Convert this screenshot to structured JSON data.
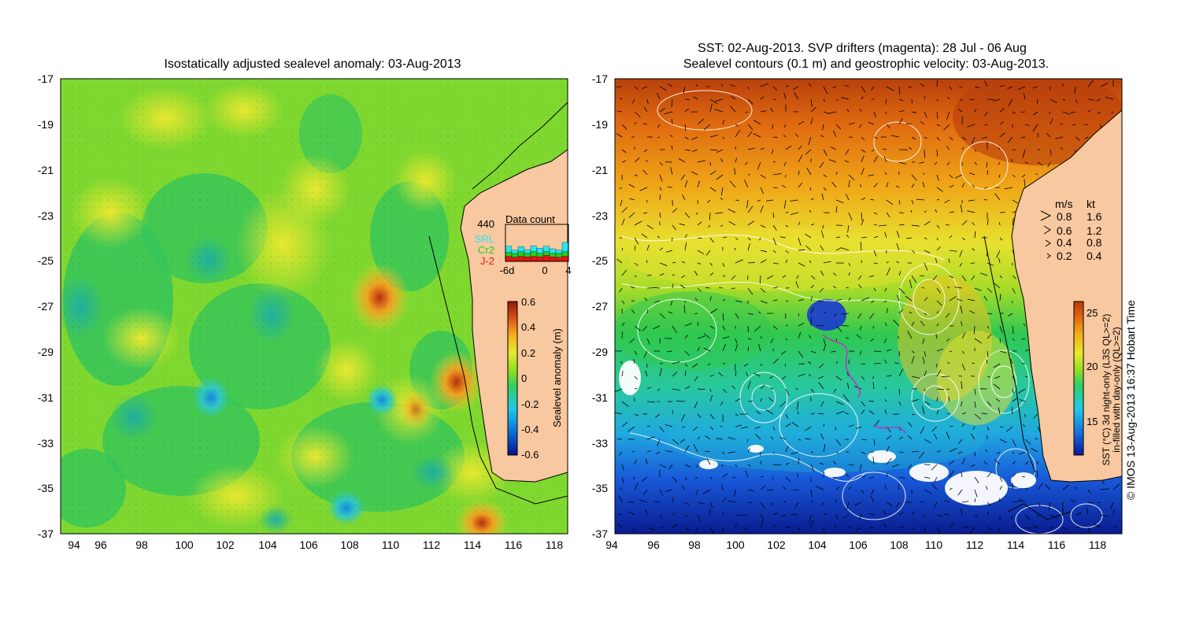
{
  "left_panel": {
    "title": "Isostatically adjusted sealevel anomaly: 03-Aug-2013",
    "lat_ticks": [
      "-17",
      "-19",
      "-21",
      "-23",
      "-25",
      "-27",
      "-29",
      "-31",
      "-33",
      "-35",
      "-37"
    ],
    "lon_ticks": [
      "94",
      "96",
      "98",
      "100",
      "102",
      "104",
      "106",
      "108",
      "110",
      "112",
      "114",
      "116",
      "118"
    ],
    "colorbar": {
      "label": "Sealevel anomaly (m)",
      "ticks": [
        "0.6",
        "0.4",
        "0.2",
        "0",
        "-0.2",
        "-0.4",
        "-0.6"
      ],
      "colors": [
        "#08108a",
        "#0a6fd8",
        "#22c8e8",
        "#2ecf62",
        "#90e020",
        "#e8e830",
        "#f6b01c",
        "#d84a14",
        "#8a1a10"
      ]
    },
    "data_count": {
      "title": "Data count",
      "max": "440",
      "sources": [
        {
          "name": "SRL",
          "color": "#22e8f0"
        },
        {
          "name": "Cr2",
          "color": "#20d020"
        },
        {
          "name": "J-2",
          "color": "#ee1010"
        }
      ],
      "days": [
        "-6d",
        "0",
        "4"
      ],
      "counts": {
        "J-2": [
          60,
          50,
          60,
          55,
          60,
          55,
          70,
          55,
          50,
          60
        ],
        "Cr2": [
          50,
          45,
          55,
          40,
          55,
          40,
          45,
          40,
          45,
          55
        ],
        "SRL": [
          70,
          40,
          60,
          45,
          70,
          60,
          65,
          55,
          40,
          110
        ]
      }
    }
  },
  "right_panel": {
    "title_line1": "SST: 02-Aug-2013. SVP drifters (magenta): 28 Jul - 06 Aug",
    "title_line2": "Sealevel contours (0.1 m) and geostrophic velocity: 03-Aug-2013.",
    "lat_ticks": [
      "-17",
      "-19",
      "-21",
      "-23",
      "-25",
      "-27",
      "-29",
      "-31",
      "-33",
      "-35",
      "-37"
    ],
    "lon_ticks": [
      "94",
      "96",
      "98",
      "100",
      "102",
      "104",
      "106",
      "108",
      "110",
      "112",
      "114",
      "116",
      "118"
    ],
    "velocity_legend": {
      "unit1": "m/s",
      "unit2": "kt",
      "rows": [
        {
          "ms": "0.8",
          "kt": "1.6"
        },
        {
          "ms": "0.6",
          "kt": "1.2"
        },
        {
          "ms": "0.4",
          "kt": "0.8"
        },
        {
          "ms": "0.2",
          "kt": "0.4"
        }
      ]
    },
    "colorbar": {
      "label_line1": "SST (°C) 3d night-only (L3S QL>=2)",
      "label_line2": "in-filled with day-only (QL>=2)",
      "ticks": [
        "25",
        "20",
        "15"
      ],
      "colors": [
        "#0a1896",
        "#1870e0",
        "#22c8e8",
        "#2ccf68",
        "#8ede22",
        "#eaea2a",
        "#f4b018",
        "#e06810",
        "#b83a0a"
      ]
    },
    "credit": "© IMOS 13-Aug-2013 16:37 Hobart Time"
  }
}
